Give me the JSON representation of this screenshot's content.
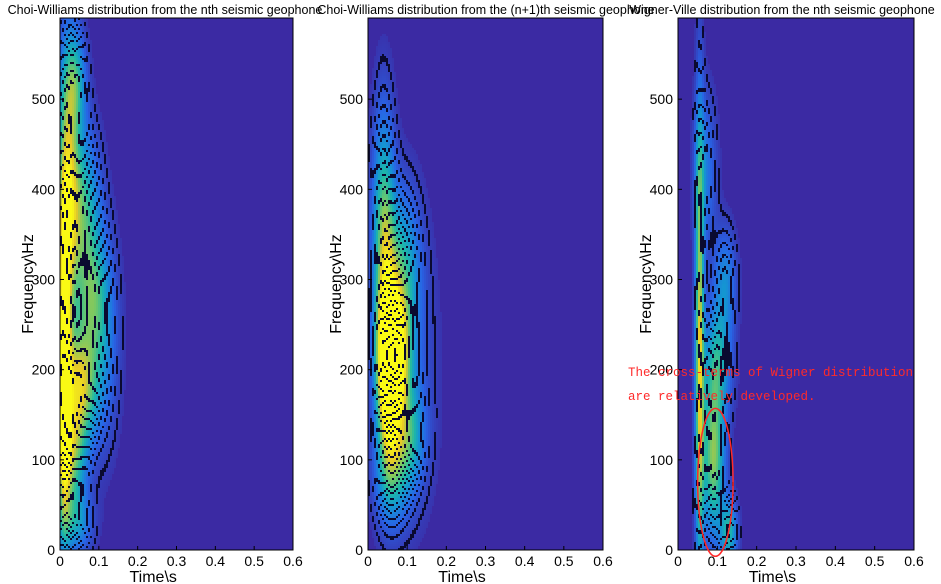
{
  "chart_data": [
    {
      "type": "heatmap",
      "title": "Choi-Williams distribution from the nth seismic geophone",
      "xlabel": "Time\\s",
      "ylabel": "Frequency\\Hz",
      "xlim": [
        0,
        0.6
      ],
      "ylim": [
        0,
        590
      ],
      "xticks": [
        0,
        0.1,
        0.2,
        0.3,
        0.4,
        0.5,
        0.6
      ],
      "xtick_labels": [
        "0",
        "0.1",
        "0.2",
        "0.3",
        "0.4",
        "0.5",
        "0.6"
      ],
      "yticks": [
        0,
        100,
        200,
        300,
        400,
        500
      ],
      "ytick_labels": [
        "0",
        "100",
        "200",
        "300",
        "400",
        "500"
      ],
      "colors": {
        "background": "#3b2aa3",
        "contour": "#000000"
      },
      "energy_blobs": [
        {
          "t": 0.01,
          "f": 200,
          "st": 0.012,
          "sf": 120,
          "amp": 1.0
        },
        {
          "t": 0.05,
          "f": 180,
          "st": 0.03,
          "sf": 45,
          "amp": 0.8
        },
        {
          "t": 0.02,
          "f": 400,
          "st": 0.02,
          "sf": 110,
          "amp": 0.75
        },
        {
          "t": 0.06,
          "f": 380,
          "st": 0.03,
          "sf": 60,
          "amp": 0.55
        },
        {
          "t": 0.08,
          "f": 280,
          "st": 0.03,
          "sf": 50,
          "amp": 0.45
        },
        {
          "t": 0.03,
          "f": 100,
          "st": 0.025,
          "sf": 40,
          "amp": 0.6
        },
        {
          "t": 0.04,
          "f": 520,
          "st": 0.02,
          "sf": 40,
          "amp": 0.45
        },
        {
          "t": 0.04,
          "f": 30,
          "st": 0.03,
          "sf": 25,
          "amp": 0.4
        },
        {
          "t": 0.11,
          "f": 230,
          "st": 0.03,
          "sf": 80,
          "amp": 0.3
        }
      ]
    },
    {
      "type": "heatmap",
      "title": "Choi-Williams distribution from the (n+1)th seismic geophone",
      "xlabel": "Time\\s",
      "ylabel": "Frequency\\Hz",
      "xlim": [
        0,
        0.6
      ],
      "ylim": [
        0,
        590
      ],
      "xticks": [
        0,
        0.1,
        0.2,
        0.3,
        0.4,
        0.5,
        0.6
      ],
      "xtick_labels": [
        "0",
        "0.1",
        "0.2",
        "0.3",
        "0.4",
        "0.5",
        "0.6"
      ],
      "yticks": [
        0,
        100,
        200,
        300,
        400,
        500
      ],
      "ytick_labels": [
        "0",
        "100",
        "200",
        "300",
        "400",
        "500"
      ],
      "colors": {
        "background": "#3b2aa3",
        "contour": "#000000"
      },
      "energy_blobs": [
        {
          "t": 0.05,
          "f": 200,
          "st": 0.02,
          "sf": 70,
          "amp": 1.0
        },
        {
          "t": 0.07,
          "f": 215,
          "st": 0.025,
          "sf": 45,
          "amp": 0.9
        },
        {
          "t": 0.04,
          "f": 360,
          "st": 0.02,
          "sf": 90,
          "amp": 0.65
        },
        {
          "t": 0.09,
          "f": 310,
          "st": 0.03,
          "sf": 60,
          "amp": 0.45
        },
        {
          "t": 0.1,
          "f": 125,
          "st": 0.03,
          "sf": 40,
          "amp": 0.45
        },
        {
          "t": 0.06,
          "f": 80,
          "st": 0.03,
          "sf": 40,
          "amp": 0.35
        },
        {
          "t": 0.1,
          "f": 200,
          "st": 0.05,
          "sf": 110,
          "amp": 0.2
        }
      ]
    },
    {
      "type": "heatmap",
      "title": "Wigner-Ville distribution from the nth seismic geophone",
      "xlabel": "Time\\s",
      "ylabel": "Frequency\\Hz",
      "xlim": [
        0,
        0.6
      ],
      "ylim": [
        0,
        590
      ],
      "xticks": [
        0,
        0.1,
        0.2,
        0.3,
        0.4,
        0.5,
        0.6
      ],
      "xtick_labels": [
        "0",
        "0.1",
        "0.2",
        "0.3",
        "0.4",
        "0.5",
        "0.6"
      ],
      "yticks": [
        0,
        100,
        200,
        300,
        400,
        500
      ],
      "ytick_labels": [
        "0",
        "100",
        "200",
        "300",
        "400",
        "500"
      ],
      "colors": {
        "background": "#3b2aa3",
        "contour": "#000000",
        "annotation": "#ff2a2a"
      },
      "energy_blobs": [
        {
          "t": 0.055,
          "f": 220,
          "st": 0.008,
          "sf": 180,
          "amp": 0.85
        },
        {
          "t": 0.09,
          "f": 100,
          "st": 0.02,
          "sf": 60,
          "amp": 0.75
        },
        {
          "t": 0.1,
          "f": 210,
          "st": 0.025,
          "sf": 45,
          "amp": 0.5
        },
        {
          "t": 0.12,
          "f": 300,
          "st": 0.02,
          "sf": 40,
          "amp": 0.35
        },
        {
          "t": 0.13,
          "f": 20,
          "st": 0.015,
          "sf": 25,
          "amp": 0.55
        },
        {
          "t": 0.07,
          "f": 420,
          "st": 0.02,
          "sf": 60,
          "amp": 0.3
        }
      ],
      "annotation": {
        "line1": "The cross-terms of Wigner distribution",
        "line2": "are relatively developed.",
        "ellipse": {
          "t": 0.095,
          "f": 75,
          "rt": 0.045,
          "rf": 82
        }
      }
    }
  ]
}
